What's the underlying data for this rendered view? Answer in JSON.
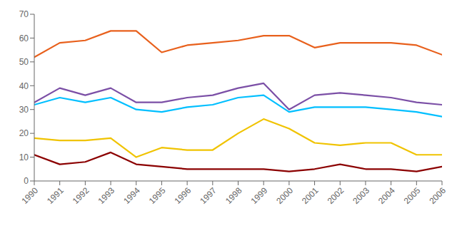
{
  "chart_data": {
    "type": "line",
    "x": [
      1990,
      1991,
      1992,
      1993,
      1994,
      1995,
      1996,
      1997,
      1998,
      1999,
      2000,
      2001,
      2002,
      2003,
      2004,
      2005,
      2006
    ],
    "series": [
      {
        "color": "#E8601C",
        "values": [
          52,
          58,
          59,
          63,
          63,
          54,
          57,
          58,
          59,
          61,
          61,
          56,
          58,
          58,
          58,
          57,
          53
        ]
      },
      {
        "color": "#7B4FA6",
        "values": [
          33,
          39,
          36,
          39,
          33,
          33,
          35,
          36,
          39,
          41,
          30,
          36,
          37,
          36,
          35,
          33,
          32
        ]
      },
      {
        "color": "#00BFFF",
        "values": [
          32,
          35,
          33,
          35,
          30,
          29,
          31,
          32,
          35,
          36,
          29,
          31,
          31,
          31,
          30,
          29,
          27
        ]
      },
      {
        "color": "#F0C300",
        "values": [
          18,
          17,
          17,
          18,
          10,
          14,
          13,
          13,
          20,
          26,
          22,
          16,
          15,
          16,
          16,
          11,
          11
        ]
      },
      {
        "color": "#8B0000",
        "values": [
          11,
          7,
          8,
          12,
          7,
          6,
          5,
          5,
          5,
          5,
          4,
          5,
          7,
          5,
          5,
          4,
          6
        ]
      }
    ],
    "xlim": [
      1990,
      2006
    ],
    "ylim": [
      0,
      70
    ],
    "xticks": [
      1990,
      1991,
      1992,
      1993,
      1994,
      1995,
      1996,
      1997,
      1998,
      1999,
      2000,
      2001,
      2002,
      2003,
      2004,
      2005,
      2006
    ],
    "yticks": [
      0,
      10,
      20,
      30,
      40,
      50,
      60,
      70
    ],
    "grid": false
  }
}
